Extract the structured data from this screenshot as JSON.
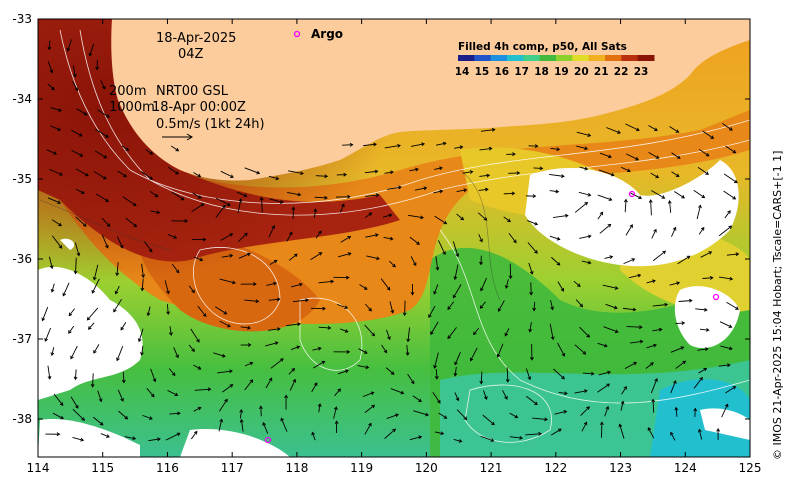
{
  "map": {
    "date": "18-Apr-2025",
    "time": "04Z",
    "depth_line1_a": "200m",
    "depth_line1_b": "NRT00 GSL",
    "depth_line2_a": "1000m",
    "depth_line2_b": "18-Apr 00:00Z",
    "scale_text": "0.5m/s (1kt 24h)",
    "argo_label": "Argo",
    "colorbar_title": "Filled 4h comp, p50, All Sats",
    "colorbar_ticks": [
      "14",
      "15",
      "16",
      "17",
      "18",
      "19",
      "20",
      "21",
      "22",
      "23"
    ],
    "colorbar_colors": [
      "#1a1f8a",
      "#1f55c8",
      "#1e90e0",
      "#22c0cf",
      "#3fcf8a",
      "#40b93c",
      "#8cd02c",
      "#e0dd2a",
      "#f0b020",
      "#e07010",
      "#b8300c",
      "#8a1408"
    ],
    "side_text": "© IMOS 21-Apr-2025 15:04 Hobart; Tscale=CARS+[-1 1]",
    "x_axis_ticks": [
      "114",
      "115",
      "116",
      "117",
      "118",
      "119",
      "120",
      "121",
      "122",
      "123",
      "124",
      "125"
    ],
    "y_axis_ticks": [
      "-33",
      "-34",
      "-35",
      "-36",
      "-37",
      "-38"
    ],
    "land_color": "#fccc9c",
    "cloud_color": "#ffffff",
    "argo_color": "#ff00ff"
  }
}
